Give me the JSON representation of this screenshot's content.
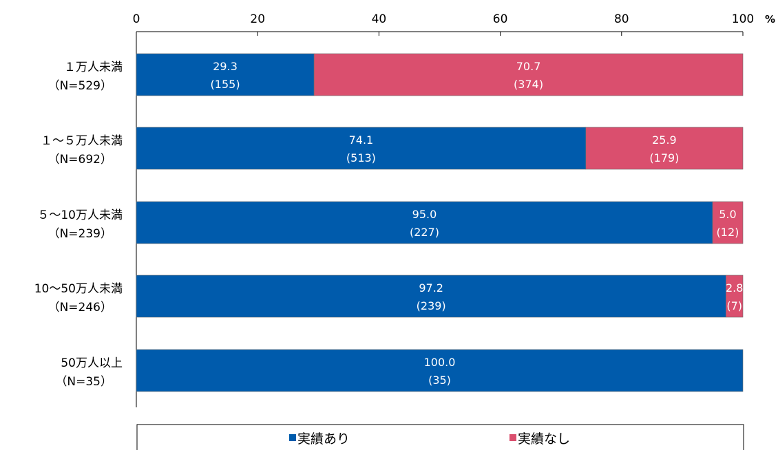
{
  "chart_data": {
    "type": "bar",
    "orientation": "horizontal",
    "stacked": true,
    "unit": "%",
    "xlim": [
      0,
      100
    ],
    "x_ticks": [
      "0",
      "20",
      "40",
      "60",
      "80",
      "100"
    ],
    "categories": [
      {
        "line1": "１万人未満",
        "line2": "（N=529）"
      },
      {
        "line1": "１～５万人未満",
        "line2": "（N=692）"
      },
      {
        "line1": "５～10万人未満",
        "line2": "（N=239）"
      },
      {
        "line1": "10～50万人未満",
        "line2": "（N=246）"
      },
      {
        "line1": "50万人以上",
        "line2": "（N=35）"
      }
    ],
    "series": [
      {
        "name": "実績あり",
        "color": "#005bac",
        "values": [
          29.3,
          74.1,
          95.0,
          97.2,
          100.0
        ],
        "value_labels": [
          "29.3",
          "74.1",
          "95.0",
          "97.2",
          "100.0"
        ],
        "count_labels": [
          "(155)",
          "(513)",
          "(227)",
          "(239)",
          "(35)"
        ]
      },
      {
        "name": "実績なし",
        "color": "#da4f6e",
        "values": [
          70.7,
          25.9,
          5.0,
          2.8,
          0
        ],
        "value_labels": [
          "70.7",
          "25.9",
          "5.0",
          "2.8",
          ""
        ],
        "count_labels": [
          "(374)",
          "(179)",
          "(12)",
          "(7)",
          ""
        ]
      }
    ],
    "legend_position": "bottom"
  }
}
